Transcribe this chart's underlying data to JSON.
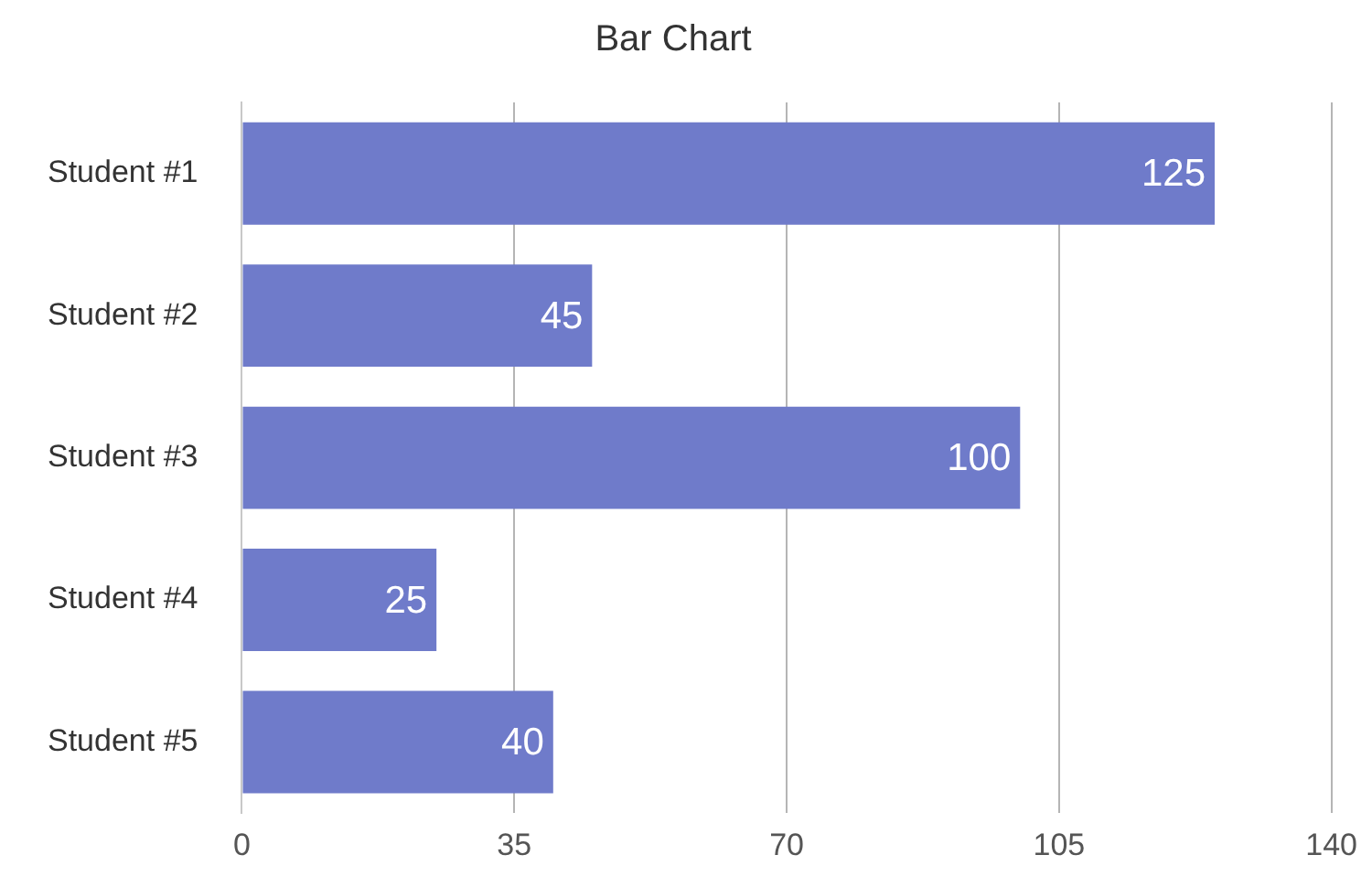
{
  "chart_data": {
    "type": "bar",
    "title": "Bar Chart",
    "orientation": "horizontal",
    "categories": [
      "Student #1",
      "Student #2",
      "Student #3",
      "Student #4",
      "Student #5"
    ],
    "values": [
      125,
      45,
      100,
      25,
      40
    ],
    "color": "#6f7bca",
    "xlim": [
      0,
      140
    ],
    "xticks": [
      0,
      35,
      70,
      105,
      140
    ],
    "grid": "x",
    "data_labels": true
  }
}
